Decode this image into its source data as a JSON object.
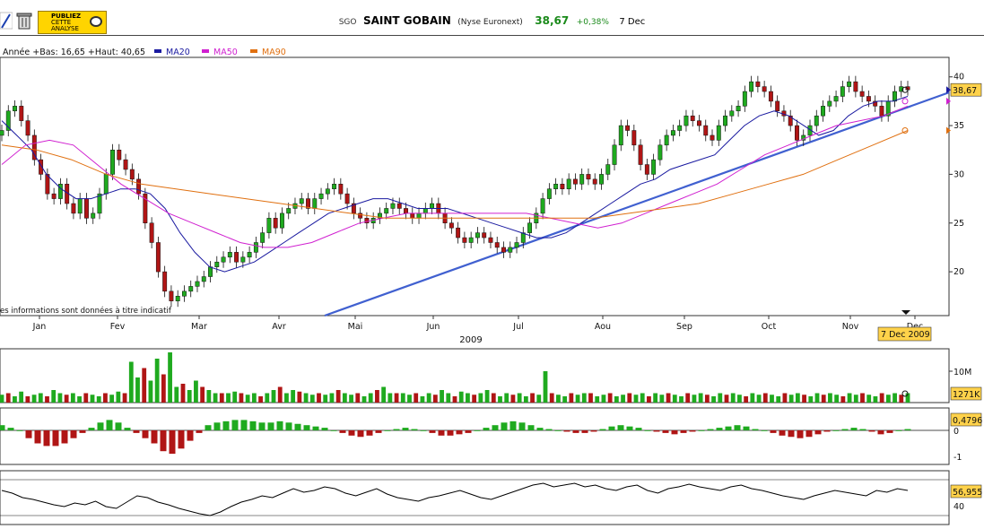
{
  "header": {
    "ticker": "SGO",
    "name": "SAINT GOBAIN",
    "exchange": "(Nyse Euronext)",
    "price": "38,67",
    "change": "+0,38%",
    "date": "7 Dec",
    "publish_line1": "PUBLIEZ",
    "publish_line2": "CETTE",
    "publish_line3": "ANALYSE",
    "icons": [
      "draw-tool-icon",
      "trash-icon",
      "speech-bubble-icon"
    ]
  },
  "legend": {
    "range_text": "Année +Bas: 16,65 +Haut: 40,65",
    "ma20": "MA20",
    "ma50": "MA50",
    "ma90": "MA90"
  },
  "disclaimer": "es informations sont données à titre indicatif",
  "colors": {
    "up": "#1faa1f",
    "down": "#b01515",
    "ma20": "#1a1aa0",
    "ma50": "#d020d0",
    "ma90": "#e07010",
    "trend": "#4060d0",
    "tag": "#ffd24a",
    "rsi": "#000000"
  },
  "chart_data": [
    {
      "type": "line",
      "subtype": "candlestick",
      "series": [
        {
          "name": "SAINT GOBAIN",
          "values": [
            34.5,
            36.5,
            37,
            35.5,
            34,
            31.5,
            30,
            28,
            27.5,
            29,
            27,
            26,
            27.5,
            25.5,
            26,
            28,
            30,
            32.5,
            31.5,
            30.5,
            29.5,
            28,
            25,
            23,
            20,
            18,
            17,
            17.5,
            18,
            18.5,
            19,
            19.5,
            20.5,
            21,
            21.5,
            22,
            21,
            21.5,
            22,
            23,
            24,
            25.5,
            24.5,
            26,
            26.5,
            27,
            27.5,
            26.5,
            27.5,
            28,
            28.5,
            29,
            28,
            27,
            26,
            25.5,
            25,
            25.5,
            26,
            26.5,
            27,
            26.5,
            26,
            25.5,
            26,
            26.5,
            27,
            26,
            25,
            24.5,
            23.5,
            23,
            23.5,
            24,
            23.5,
            23,
            22.5,
            22,
            22.5,
            23,
            24,
            25,
            26,
            27.5,
            28.5,
            29,
            28.5,
            29.5,
            29,
            30,
            29.5,
            29,
            30,
            31,
            33,
            35,
            34.5,
            33,
            31,
            30,
            31.5,
            33,
            34,
            34.5,
            35,
            36,
            35.5,
            35,
            34,
            33.5,
            35,
            36,
            36.5,
            37,
            38.5,
            39.5,
            39,
            38.5,
            37.5,
            36.5,
            36,
            35,
            33.5,
            34,
            35,
            36,
            37,
            37.5,
            38,
            39,
            39.5,
            38.5,
            38,
            37.5,
            37,
            36,
            37.5,
            38.5,
            39,
            38.67
          ]
        },
        {
          "name": "MA20",
          "values": [
            35.5,
            34,
            32.5,
            30,
            28.5,
            27.5,
            27.5,
            28,
            28.5,
            28.5,
            28,
            26.5,
            24,
            22,
            20.5,
            20,
            20.5,
            21,
            22,
            23,
            24,
            25,
            26,
            26.5,
            27,
            27.5,
            27.5,
            27,
            26.5,
            26.5,
            26.5,
            26,
            25.5,
            25,
            24.5,
            24,
            23.5,
            23.5,
            24,
            25,
            26,
            27,
            28,
            29,
            29.5,
            30.5,
            31,
            31.5,
            32,
            33.5,
            35,
            36,
            36.5,
            36,
            35,
            34,
            34.5,
            36,
            37,
            37.5,
            37.5,
            38
          ]
        },
        {
          "name": "MA50",
          "values": [
            31,
            33,
            33.5,
            33,
            31,
            29,
            27.5,
            26,
            25,
            24,
            23,
            22.5,
            22.5,
            23,
            24,
            25,
            25.5,
            26,
            26,
            26,
            26,
            26,
            26,
            25.5,
            25,
            24.5,
            25,
            26,
            27,
            28,
            29,
            30.5,
            32,
            33,
            34,
            35,
            35.5,
            36,
            37
          ]
        },
        {
          "name": "MA90",
          "values": [
            33,
            32.5,
            31.5,
            30,
            29,
            28.5,
            28,
            27.5,
            27,
            26.5,
            26,
            25.5,
            25.5,
            25.5,
            25.5,
            25.5,
            25.5,
            25.5,
            26,
            26.5,
            27,
            28,
            29,
            30,
            31.5,
            33,
            34.5
          ]
        }
      ],
      "annotations": [
        "38,67"
      ],
      "x_tick_labels": [
        "Jan",
        "Fev",
        "Mar",
        "Avr",
        "Mai",
        "Jun",
        "Jul",
        "Aou",
        "Sep",
        "Oct",
        "Nov",
        "Dec"
      ],
      "x_axis_label": "2009",
      "y_tick_labels": [
        "20",
        "25",
        "30",
        "35",
        "40"
      ],
      "ylim": [
        15.5,
        42
      ],
      "cursor_label": "7 Dec 2009",
      "grid": false
    },
    {
      "type": "bar",
      "series": [
        {
          "name": "Volume",
          "values": [
            2.5,
            3,
            2,
            3.5,
            2,
            2.5,
            3,
            2,
            4,
            3,
            2.5,
            3,
            2,
            3,
            2.5,
            2,
            3,
            2.5,
            3.5,
            3,
            13,
            8,
            11,
            7,
            14,
            9,
            16,
            5,
            6,
            4,
            7,
            5,
            4,
            3,
            3,
            3,
            3.5,
            3,
            2.5,
            3,
            2,
            3,
            4,
            5,
            3,
            4,
            3.5,
            3,
            2.5,
            3,
            2.5,
            3,
            4,
            3,
            2.5,
            3,
            2,
            3,
            4,
            5,
            3,
            3,
            3,
            2.5,
            3,
            2,
            3,
            2.5,
            4,
            3,
            2,
            3.5,
            3,
            2.5,
            3,
            4,
            3,
            2,
            3,
            2.5,
            3,
            2,
            3,
            2.5,
            10,
            3,
            2.5,
            2,
            3,
            2.5,
            3,
            3,
            2,
            2.5,
            3,
            2,
            2.5,
            3,
            2.5,
            3,
            2,
            3,
            2.5,
            3,
            2.5,
            2,
            3,
            2.5,
            3,
            2.5,
            2,
            3,
            2.5,
            3,
            2.5,
            2,
            3,
            2.5,
            3,
            2.5,
            2,
            3,
            2.5,
            3,
            2.5,
            2,
            3,
            2.5,
            3,
            2.5,
            2,
            3,
            2.5,
            3,
            2.5,
            2,
            3,
            2.5,
            3,
            2.5,
            3
          ]
        }
      ],
      "annotations": [
        "1271K"
      ],
      "y_tick_labels": [
        "10M"
      ]
    },
    {
      "type": "bar",
      "series": [
        {
          "name": "Oscillator",
          "values": [
            0.2,
            0.1,
            0,
            -0.3,
            -0.5,
            -0.6,
            -0.6,
            -0.5,
            -0.3,
            -0.1,
            0.1,
            0.3,
            0.4,
            0.3,
            0.1,
            -0.1,
            -0.3,
            -0.5,
            -0.8,
            -0.9,
            -0.7,
            -0.4,
            -0.1,
            0.2,
            0.3,
            0.35,
            0.4,
            0.4,
            0.35,
            0.3,
            0.3,
            0.35,
            0.3,
            0.25,
            0.2,
            0.15,
            0.1,
            0,
            -0.1,
            -0.2,
            -0.25,
            -0.2,
            -0.1,
            0,
            0.05,
            0.1,
            0.05,
            0,
            -0.1,
            -0.2,
            -0.2,
            -0.15,
            -0.1,
            0,
            0.1,
            0.2,
            0.3,
            0.35,
            0.3,
            0.2,
            0.1,
            0.05,
            0,
            -0.05,
            -0.1,
            -0.1,
            -0.05,
            0.05,
            0.15,
            0.2,
            0.15,
            0.1,
            0,
            -0.05,
            -0.1,
            -0.15,
            -0.1,
            -0.05,
            0,
            0.05,
            0.1,
            0.15,
            0.2,
            0.15,
            0.05,
            0,
            -0.1,
            -0.2,
            -0.25,
            -0.3,
            -0.25,
            -0.15,
            -0.05,
            0,
            0.05,
            0.1,
            0.05,
            -0.05,
            -0.15,
            -0.1,
            0,
            0.05
          ]
        }
      ],
      "annotations": [
        "0,4796"
      ],
      "y_tick_labels": [
        "0",
        "-1"
      ]
    },
    {
      "type": "line",
      "series": [
        {
          "name": "Indicator",
          "values": [
            58,
            55,
            50,
            48,
            45,
            42,
            40,
            44,
            42,
            46,
            40,
            38,
            45,
            52,
            50,
            45,
            42,
            38,
            35,
            32,
            30,
            34,
            40,
            45,
            48,
            52,
            50,
            55,
            60,
            56,
            58,
            62,
            60,
            55,
            52,
            56,
            60,
            54,
            50,
            48,
            46,
            50,
            52,
            55,
            58,
            54,
            50,
            48,
            52,
            56,
            60,
            64,
            66,
            62,
            64,
            66,
            62,
            64,
            60,
            58,
            62,
            64,
            58,
            55,
            60,
            62,
            65,
            62,
            60,
            58,
            62,
            64,
            60,
            58,
            55,
            52,
            50,
            48,
            52,
            55,
            58,
            56,
            54,
            52,
            58,
            56,
            60,
            58
          ]
        }
      ],
      "annotations": [
        "56,955"
      ],
      "y_tick_labels": [
        "40"
      ]
    }
  ]
}
